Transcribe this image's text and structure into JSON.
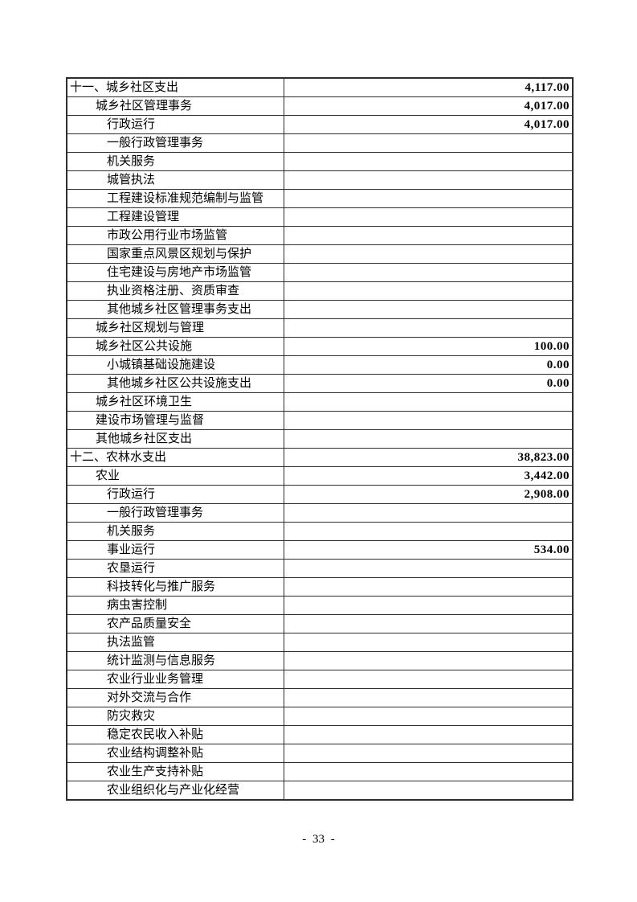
{
  "page": {
    "footer_page_number": "- 33 -"
  },
  "colors": {
    "text": "#000000",
    "border": "#2e2e2e",
    "background": "#ffffff"
  },
  "table": {
    "columns": [
      "item",
      "amount"
    ],
    "rows": [
      {
        "level": 1,
        "label": "十一、城乡社区支出",
        "value": "4,117.00"
      },
      {
        "level": 2,
        "label": "城乡社区管理事务",
        "value": "4,017.00"
      },
      {
        "level": 3,
        "label": "行政运行",
        "value": "4,017.00"
      },
      {
        "level": 3,
        "label": "一般行政管理事务",
        "value": ""
      },
      {
        "level": 3,
        "label": "机关服务",
        "value": ""
      },
      {
        "level": 3,
        "label": "城管执法",
        "value": ""
      },
      {
        "level": 3,
        "label": "工程建设标准规范编制与监管",
        "value": ""
      },
      {
        "level": 3,
        "label": "工程建设管理",
        "value": ""
      },
      {
        "level": 3,
        "label": "市政公用行业市场监管",
        "value": ""
      },
      {
        "level": 3,
        "label": "国家重点风景区规划与保护",
        "value": ""
      },
      {
        "level": 3,
        "label": "住宅建设与房地产市场监管",
        "value": ""
      },
      {
        "level": 3,
        "label": "执业资格注册、资质审查",
        "value": ""
      },
      {
        "level": 3,
        "label": "其他城乡社区管理事务支出",
        "value": ""
      },
      {
        "level": 2,
        "label": "城乡社区规划与管理",
        "value": ""
      },
      {
        "level": 2,
        "label": "城乡社区公共设施",
        "value": "100.00"
      },
      {
        "level": 3,
        "label": "小城镇基础设施建设",
        "value": "0.00"
      },
      {
        "level": 3,
        "label": "其他城乡社区公共设施支出",
        "value": "0.00"
      },
      {
        "level": 2,
        "label": "城乡社区环境卫生",
        "value": ""
      },
      {
        "level": 2,
        "label": "建设市场管理与监督",
        "value": ""
      },
      {
        "level": 2,
        "label": "其他城乡社区支出",
        "value": ""
      },
      {
        "level": 1,
        "label": "十二、农林水支出",
        "value": "38,823.00"
      },
      {
        "level": 2,
        "label": "农业",
        "value": "3,442.00"
      },
      {
        "level": 3,
        "label": "行政运行",
        "value": "2,908.00"
      },
      {
        "level": 3,
        "label": "一般行政管理事务",
        "value": ""
      },
      {
        "level": 3,
        "label": "机关服务",
        "value": ""
      },
      {
        "level": 3,
        "label": "事业运行",
        "value": "534.00"
      },
      {
        "level": 3,
        "label": "农垦运行",
        "value": ""
      },
      {
        "level": 3,
        "label": "科技转化与推广服务",
        "value": ""
      },
      {
        "level": 3,
        "label": "病虫害控制",
        "value": ""
      },
      {
        "level": 3,
        "label": "农产品质量安全",
        "value": ""
      },
      {
        "level": 3,
        "label": "执法监管",
        "value": ""
      },
      {
        "level": 3,
        "label": "统计监测与信息服务",
        "value": ""
      },
      {
        "level": 3,
        "label": "农业行业业务管理",
        "value": ""
      },
      {
        "level": 3,
        "label": "对外交流与合作",
        "value": ""
      },
      {
        "level": 3,
        "label": "防灾救灾",
        "value": ""
      },
      {
        "level": 3,
        "label": "稳定农民收入补贴",
        "value": ""
      },
      {
        "level": 3,
        "label": "农业结构调整补贴",
        "value": ""
      },
      {
        "level": 3,
        "label": "农业生产支持补贴",
        "value": ""
      },
      {
        "level": 3,
        "label": "农业组织化与产业化经营",
        "value": ""
      }
    ]
  }
}
